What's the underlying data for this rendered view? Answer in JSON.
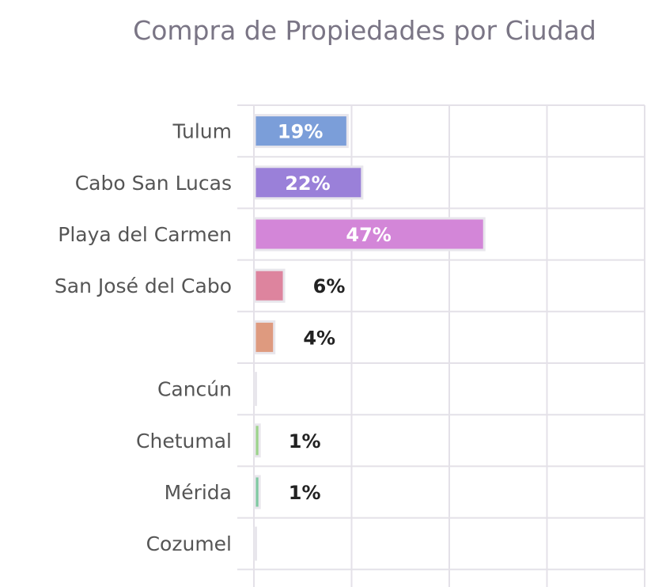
{
  "chart_data": {
    "type": "bar",
    "orientation": "horizontal",
    "title": "Compra de Propiedades por Ciudad",
    "xlabel": "",
    "ylabel": "",
    "xlim": [
      0,
      80
    ],
    "grid": true,
    "legend": "none",
    "categories": [
      "Tulum",
      "Cabo San Lucas",
      "Playa del Carmen",
      "San José del Cabo",
      "",
      "Cancún",
      "Chetumal",
      "Mérida",
      "Cozumel"
    ],
    "values": [
      19,
      22,
      47,
      6,
      4,
      0,
      1,
      1,
      0
    ],
    "value_labels": [
      "19%",
      "22%",
      "47%",
      "6%",
      "4%",
      "",
      "1%",
      "1%",
      ""
    ],
    "colors": [
      "#7b9ed9",
      "#9a80d9",
      "#d386d8",
      "#dd849e",
      "#de9a7f",
      "#d9cf8f",
      "#9cd38a",
      "#7fc9a1",
      "#8fcdd4"
    ],
    "label_inside_color": "#ffffff",
    "label_outside_color": "#222222"
  }
}
